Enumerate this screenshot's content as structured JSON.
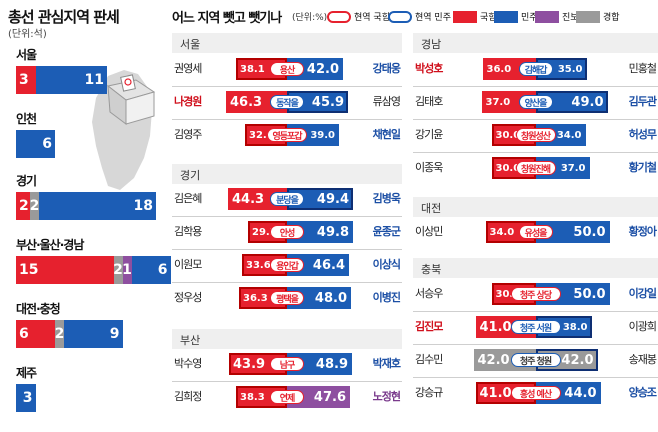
{
  "left": {
    "title": "총선 관심지역 판세",
    "unit": "(단위:석)",
    "regions": [
      {
        "name": "서울",
        "segments": [
          {
            "party": "국힘",
            "color": "red",
            "value": 3
          },
          {
            "party": "민주",
            "color": "blue",
            "value": 11
          }
        ]
      },
      {
        "name": "인천",
        "segments": [
          {
            "party": "민주",
            "color": "blue",
            "value": 6
          }
        ]
      },
      {
        "name": "경기",
        "segments": [
          {
            "party": "국힘",
            "color": "red",
            "value": 2
          },
          {
            "party": "경합",
            "color": "gray",
            "value": 2
          },
          {
            "party": "민주",
            "color": "blue",
            "value": 18
          }
        ]
      },
      {
        "name": "부산·울산·경남",
        "segments": [
          {
            "party": "국힘",
            "color": "red",
            "value": 15
          },
          {
            "party": "경합",
            "color": "gray",
            "value": 2
          },
          {
            "party": "진보",
            "color": "purple",
            "value": 1
          },
          {
            "party": "민주",
            "color": "blue",
            "value": 6
          }
        ]
      },
      {
        "name": "대전·충청",
        "segments": [
          {
            "party": "국힘",
            "color": "red",
            "value": 6
          },
          {
            "party": "경합",
            "color": "gray",
            "value": 2
          },
          {
            "party": "민주",
            "color": "blue",
            "value": 9
          }
        ]
      },
      {
        "name": "제주",
        "segments": [
          {
            "party": "민주",
            "color": "blue",
            "value": 3
          }
        ]
      }
    ]
  },
  "header": {
    "title": "어느 지역 뺏고 뺏기나",
    "unit": "(단위:%)",
    "legend": [
      {
        "label": "현역 국힘",
        "kind": "oval",
        "color": "#e6212e"
      },
      {
        "label": "현역 민주",
        "kind": "oval",
        "color": "#1c5db5"
      },
      {
        "label": "국힘",
        "kind": "square",
        "color": "#e6212e"
      },
      {
        "label": "민주",
        "kind": "square",
        "color": "#1c5db5"
      },
      {
        "label": "진보",
        "kind": "square",
        "color": "#8e4fa0"
      },
      {
        "label": "경합",
        "kind": "square",
        "color": "#9a9a9a"
      }
    ]
  },
  "colors": {
    "red": "#e6212e",
    "blue": "#1c5db5",
    "gray": "#9a9a9a",
    "purple": "#8e4fa0",
    "panel": "#efefef"
  },
  "chart_data": {
    "type": "bar",
    "title": "어느 지역 뺏고 뺏기나",
    "unit": "%",
    "regions": [
      {
        "region": "서울",
        "races": [
          {
            "district": "용산",
            "left": {
              "name": "권영세",
              "value": 38.1,
              "color": "red",
              "emph": false
            },
            "right": {
              "name": "강태웅",
              "value": 42.0,
              "color": "blue",
              "emph": true
            },
            "incumbent": "left"
          },
          {
            "district": "동작을",
            "left": {
              "name": "나경원",
              "value": 46.3,
              "color": "red",
              "emph": true
            },
            "right": {
              "name": "류삼영",
              "value": 45.9,
              "color": "blue",
              "emph": false
            },
            "incumbent": "right"
          },
          {
            "district": "영등포갑",
            "left": {
              "name": "김영주",
              "value": 32.0,
              "color": "red",
              "emph": false
            },
            "right": {
              "name": "채현일",
              "value": 39.0,
              "color": "blue",
              "emph": true
            },
            "incumbent": "left"
          }
        ]
      },
      {
        "region": "경기",
        "races": [
          {
            "district": "분당을",
            "left": {
              "name": "김은혜",
              "value": 44.3,
              "color": "red",
              "emph": false
            },
            "right": {
              "name": "김병욱",
              "value": 49.4,
              "color": "blue",
              "emph": true
            },
            "incumbent": "right"
          },
          {
            "district": "안성",
            "left": {
              "name": "김학용",
              "value": 29.3,
              "color": "red",
              "emph": false
            },
            "right": {
              "name": "윤종군",
              "value": 49.8,
              "color": "blue",
              "emph": true
            },
            "incumbent": "left"
          },
          {
            "district": "용인갑",
            "left": {
              "name": "이원모",
              "value": 33.6,
              "color": "red",
              "emph": false
            },
            "right": {
              "name": "이상식",
              "value": 46.4,
              "color": "blue",
              "emph": true
            },
            "incumbent": "left"
          },
          {
            "district": "평택을",
            "left": {
              "name": "정우성",
              "value": 36.3,
              "color": "red",
              "emph": false
            },
            "right": {
              "name": "이병진",
              "value": 48.0,
              "color": "blue",
              "emph": true
            },
            "incumbent": "left"
          }
        ]
      },
      {
        "region": "부산",
        "races": [
          {
            "district": "남구",
            "left": {
              "name": "박수영",
              "value": 43.9,
              "color": "red",
              "emph": false
            },
            "right": {
              "name": "박재호",
              "value": 48.9,
              "color": "blue",
              "emph": true
            },
            "incumbent": "left"
          },
          {
            "district": "연제",
            "left": {
              "name": "김희정",
              "value": 38.3,
              "color": "red",
              "emph": false
            },
            "right": {
              "name": "노정현",
              "value": 47.6,
              "color": "purple",
              "emph": true
            },
            "incumbent": "left"
          }
        ]
      },
      {
        "region": "경남",
        "races": [
          {
            "district": "김해갑",
            "left": {
              "name": "박성호",
              "value": 36.0,
              "color": "red",
              "emph": true
            },
            "right": {
              "name": "민홍철",
              "value": 35.0,
              "color": "blue",
              "emph": false
            },
            "incumbent": "right"
          },
          {
            "district": "양산을",
            "left": {
              "name": "김태호",
              "value": 37.0,
              "color": "red",
              "emph": false
            },
            "right": {
              "name": "김두관",
              "value": 49.0,
              "color": "blue",
              "emph": true
            },
            "incumbent": "right"
          },
          {
            "district": "창원성산",
            "left": {
              "name": "강기윤",
              "value": 30.0,
              "color": "red",
              "emph": false
            },
            "right": {
              "name": "허성무",
              "value": 34.0,
              "color": "blue",
              "emph": true
            },
            "incumbent": "left"
          },
          {
            "district": "창원진해",
            "left": {
              "name": "이종욱",
              "value": 30.0,
              "color": "red",
              "emph": false
            },
            "right": {
              "name": "황기철",
              "value": 37.0,
              "color": "blue",
              "emph": true
            },
            "incumbent": "left"
          }
        ]
      },
      {
        "region": "대전",
        "races": [
          {
            "district": "유성을",
            "left": {
              "name": "이상민",
              "value": 34.0,
              "color": "red",
              "emph": false
            },
            "right": {
              "name": "황정아",
              "value": 50.0,
              "color": "blue",
              "emph": true
            },
            "incumbent": "left"
          }
        ]
      },
      {
        "region": "충북",
        "races": [
          {
            "district": "청주 상당",
            "left": {
              "name": "서승우",
              "value": 30.0,
              "color": "red",
              "emph": false
            },
            "right": {
              "name": "이강일",
              "value": 50.0,
              "color": "blue",
              "emph": true
            },
            "incumbent": "left"
          },
          {
            "district": "청주 서원",
            "left": {
              "name": "김진모",
              "value": 41.0,
              "color": "red",
              "emph": true
            },
            "right": {
              "name": "이광희",
              "value": 38.0,
              "color": "blue",
              "emph": false
            },
            "incumbent": "right"
          },
          {
            "district": "청주 청원",
            "left": {
              "name": "김수민",
              "value": 42.0,
              "color": "gray",
              "emph": false
            },
            "right": {
              "name": "송재봉",
              "value": 42.0,
              "color": "gray",
              "emph": false
            },
            "incumbent": "right"
          },
          {
            "district": "홍성 예산",
            "left": {
              "name": "강승규",
              "value": 41.0,
              "color": "red",
              "emph": false
            },
            "right": {
              "name": "양승조",
              "value": 44.0,
              "color": "blue",
              "emph": true
            },
            "incumbent": "left"
          }
        ]
      }
    ]
  }
}
